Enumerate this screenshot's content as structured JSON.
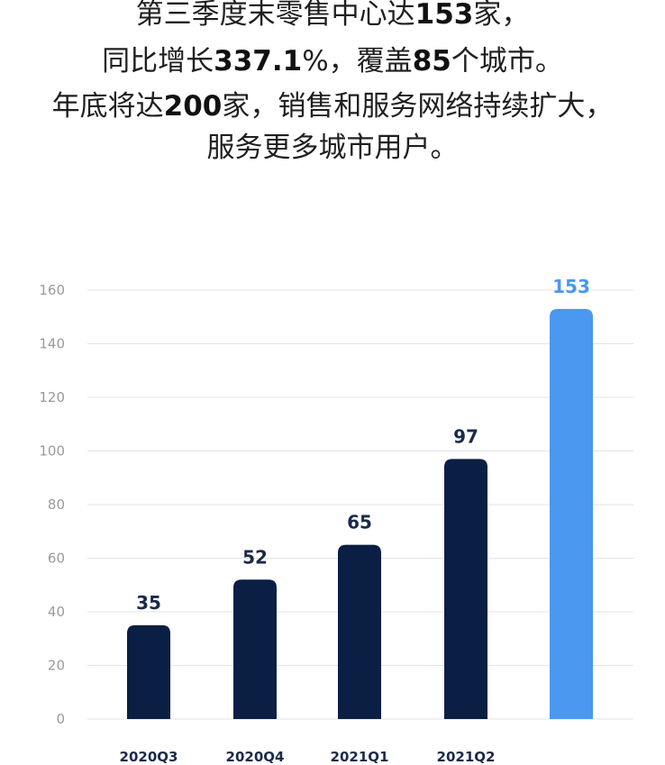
{
  "headline": {
    "line1": {
      "a": "第三季度末零售中心达",
      "num": "153",
      "b": "家，"
    },
    "line2": {
      "a": "同比增长",
      "num": "337.1",
      "b": "%，覆盖",
      "num2": "85",
      "c": "个城市。"
    },
    "line3": {
      "a": "年底将达",
      "num": "200",
      "b": "家，销售和服务网络持续扩大，"
    },
    "line4": {
      "a": "服务更多城市用户。"
    }
  },
  "colors": {
    "bar_dark": "#0b1f45",
    "bar_highlight": "#4a98f0",
    "label_dark": "#1b2a4a",
    "label_highlight": "#4a98f0",
    "grid": "#e3e3e3",
    "tick": "#9a9a9a"
  },
  "chart_data": {
    "type": "bar",
    "title": "",
    "xlabel": "",
    "ylabel": "",
    "ylim": [
      0,
      160
    ],
    "yticks": [
      0,
      20,
      40,
      60,
      80,
      100,
      120,
      140,
      160
    ],
    "grid": true,
    "categories": [
      "2020Q3",
      "2020Q4",
      "2021Q1",
      "2021Q2",
      ""
    ],
    "values": [
      35,
      52,
      65,
      97,
      153
    ],
    "data_labels": [
      "35",
      "52",
      "65",
      "97",
      "153"
    ],
    "highlight_index": 4
  }
}
